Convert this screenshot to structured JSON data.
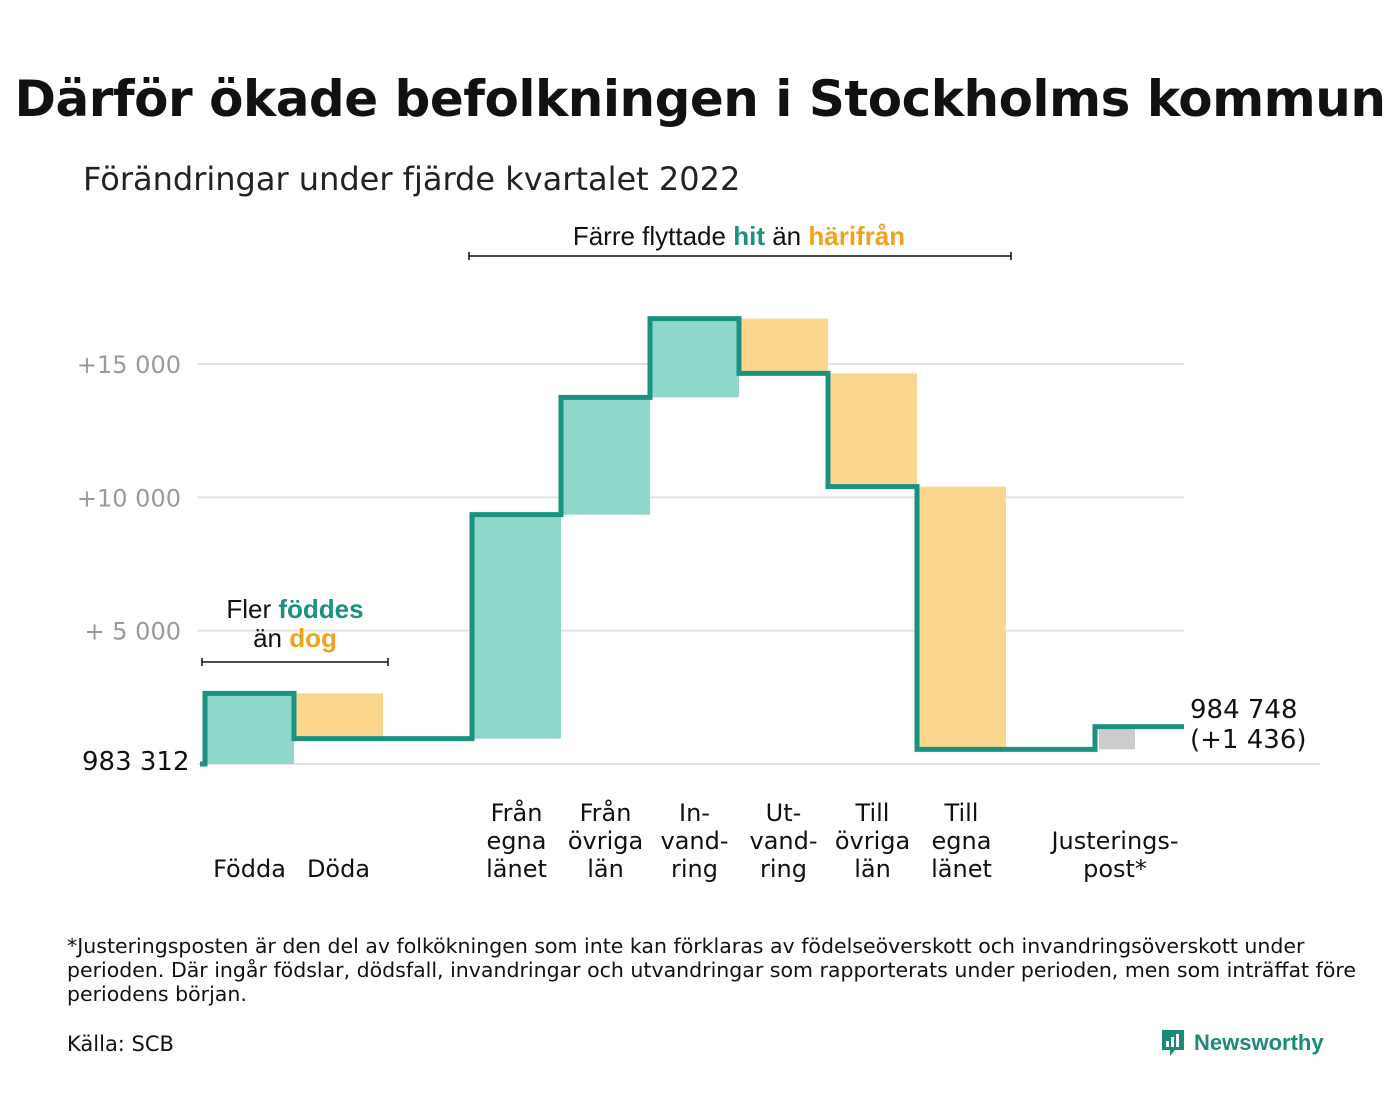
{
  "title": "Därför ökade befolkningen i Stockholms kommun",
  "subtitle": "Förändringar under fjärde kvartalet 2022",
  "colors": {
    "increase_fill": "#8fd6cb",
    "decrease_fill": "#fbd68f",
    "adjustment_fill": "#cccccc",
    "step_line": "#1b9280",
    "accent_green": "#1b9280",
    "accent_orange": "#f0a21e",
    "grid": "#e3e3e3",
    "tick_text": "#9a9a9a"
  },
  "footnote": "*Justeringsposten är den del av folkökningen som inte kan förklaras av födelseöverskott och invandringsöverskott under perioden. Där ingår födslar, dödsfall, invandringar och utvandringar som rapporterats under perioden, men som inträffat före periodens början.",
  "source": "Källa: SCB",
  "logo": {
    "name": "Newsworthy",
    "icon": "newsworthy-logo-icon"
  },
  "chart_data": {
    "type": "waterfall",
    "start_label": "983 312",
    "end_label_lines": [
      "984 748",
      "(+1 436)"
    ],
    "ylim": [
      0,
      18000
    ],
    "yticks": [
      {
        "value": 5000,
        "label": "+ 5 000"
      },
      {
        "value": 10000,
        "label": "+10 000"
      },
      {
        "value": 15000,
        "label": "+15 000"
      }
    ],
    "grid": true,
    "steps": [
      {
        "label_lines": [
          "Födda"
        ],
        "change": 2650,
        "kind": "increase"
      },
      {
        "label_lines": [
          "Döda"
        ],
        "change": -1700,
        "kind": "decrease"
      },
      {
        "gap": true
      },
      {
        "label_lines": [
          "Från",
          "egna",
          "länet"
        ],
        "change": 8400,
        "kind": "increase"
      },
      {
        "label_lines": [
          "Från",
          "övriga",
          "län"
        ],
        "change": 4400,
        "kind": "increase"
      },
      {
        "label_lines": [
          "In-",
          "vand-",
          "ring"
        ],
        "change": 2950,
        "kind": "increase"
      },
      {
        "label_lines": [
          "Ut-",
          "vand-",
          "ring"
        ],
        "change": -2050,
        "kind": "decrease"
      },
      {
        "label_lines": [
          "Till",
          "övriga",
          "län"
        ],
        "change": -4250,
        "kind": "decrease"
      },
      {
        "label_lines": [
          "Till",
          "egna",
          "länet"
        ],
        "change": -9850,
        "kind": "decrease"
      },
      {
        "gap": true
      },
      {
        "label_lines": [
          "Justerings-",
          "post*"
        ],
        "change": 850,
        "kind": "adjustment"
      }
    ],
    "annotations": [
      {
        "id": "births",
        "lines": [
          [
            {
              "t": "Fler ",
              "c": "dark"
            },
            {
              "t": "föddes",
              "c": "green"
            }
          ],
          [
            {
              "t": "än ",
              "c": "dark"
            },
            {
              "t": "dog",
              "c": "orange"
            }
          ]
        ]
      },
      {
        "id": "migration",
        "lines": [
          [
            {
              "t": "Färre flyttade ",
              "c": "dark"
            },
            {
              "t": "hit",
              "c": "green"
            },
            {
              "t": " än ",
              "c": "dark"
            },
            {
              "t": "härifrån",
              "c": "orange"
            }
          ]
        ]
      }
    ]
  }
}
